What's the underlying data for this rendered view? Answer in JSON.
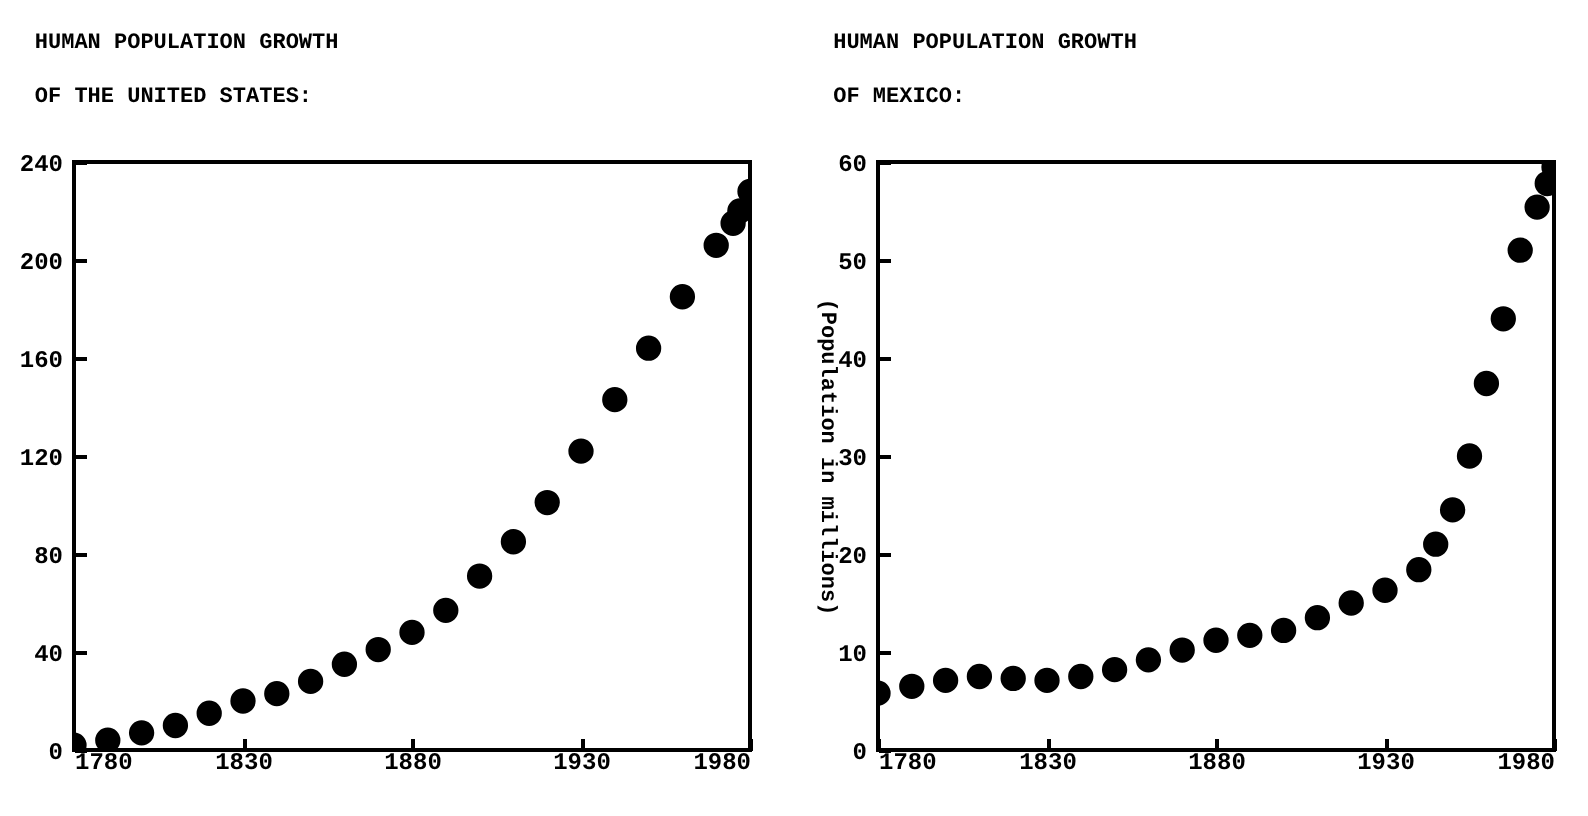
{
  "chart_data": [
    {
      "type": "scatter",
      "title": "HUMAN POPULATION GROWTH",
      "subtitle": "OF THE UNITED STATES:",
      "marker": "circle",
      "x": [
        1780,
        1790,
        1800,
        1810,
        1820,
        1830,
        1840,
        1850,
        1860,
        1870,
        1880,
        1890,
        1900,
        1910,
        1920,
        1930,
        1940,
        1950,
        1960,
        1970,
        1975,
        1977,
        1980
      ],
      "series": [
        {
          "color": "#000000",
          "values": [
            2,
            4,
            7,
            10,
            15,
            20,
            23,
            28,
            35,
            41,
            48,
            57,
            71,
            85,
            101,
            122,
            143,
            164,
            185,
            206,
            215,
            220,
            228
          ]
        }
      ],
      "xlim": [
        1780,
        1980
      ],
      "xticks": [
        1780,
        1830,
        1880,
        1930,
        1980
      ],
      "ylim": [
        0,
        240
      ],
      "yticks": [
        0,
        40,
        80,
        120,
        160,
        200,
        240
      ]
    },
    {
      "type": "scatter",
      "title": "HUMAN POPULATION GROWTH",
      "subtitle": "OF MEXICO:",
      "ylabel": "(Population in millions)",
      "marker": "circle",
      "x": [
        1780,
        1790,
        1800,
        1810,
        1820,
        1830,
        1840,
        1850,
        1860,
        1870,
        1880,
        1890,
        1900,
        1910,
        1920,
        1930,
        1940,
        1945,
        1950,
        1955,
        1960,
        1965,
        1970,
        1975,
        1978,
        1980
      ],
      "series": [
        {
          "color": "#000000",
          "values": [
            5.8,
            6.5,
            7.1,
            7.5,
            7.3,
            7.1,
            7.5,
            8.2,
            9.2,
            10.2,
            11.2,
            11.7,
            12.2,
            13.5,
            15,
            16.3,
            18.4,
            21,
            24.5,
            30,
            37.4,
            44,
            51,
            55.4,
            57.8,
            59.5
          ]
        }
      ],
      "xlim": [
        1780,
        1980
      ],
      "xticks": [
        1780,
        1830,
        1880,
        1930,
        1980
      ],
      "ylim": [
        0,
        60
      ],
      "yticks": [
        0,
        10,
        20,
        30,
        40,
        50,
        60
      ]
    }
  ]
}
